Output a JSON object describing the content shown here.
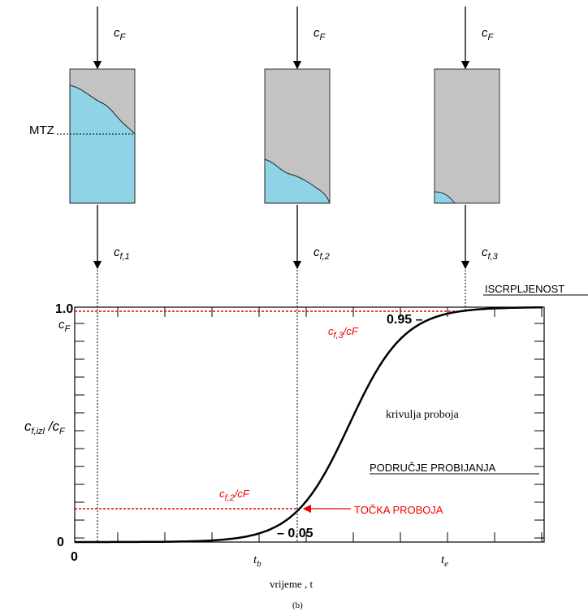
{
  "columns": [
    {
      "feed": {
        "c": "c",
        "sub": "F"
      },
      "outlet": {
        "c": "c",
        "sub": "f,1"
      }
    },
    {
      "feed": {
        "c": "c",
        "sub": "F"
      },
      "outlet": {
        "c": "c",
        "sub": "f,2"
      }
    },
    {
      "feed": {
        "c": "c",
        "sub": "F"
      },
      "outlet": {
        "c": "c",
        "sub": "f,3"
      }
    }
  ],
  "mtz": "MTZ",
  "chart": {
    "y_top": "1.0",
    "y_top_unit": {
      "c": "c",
      "sub": "F"
    },
    "y_zero": "0",
    "x_zero": "0",
    "y_label": {
      "c": "c",
      "sub": "f,izl",
      "mid": " /c",
      "sub2": "F"
    },
    "level_high": "0.95 –",
    "level_low": "– 0.05",
    "ratio_3": {
      "c": "c",
      "sub": "f,3",
      "rest": "/cF"
    },
    "ratio_2": {
      "c": "c",
      "sub": "f,2",
      "rest": "/cF"
    },
    "exhaustion": "ISCRPLJENOST",
    "curve_label": "krivulja proboja",
    "zone": "PODRUČJE PROBIJANJA",
    "breakpoint": "TOČKA PROBOJA",
    "tb": {
      "t": "t",
      "sub": "b"
    },
    "te": {
      "t": "t",
      "sub": "e"
    },
    "x_label": "vrijeme , t",
    "caption": "(b)"
  }
}
